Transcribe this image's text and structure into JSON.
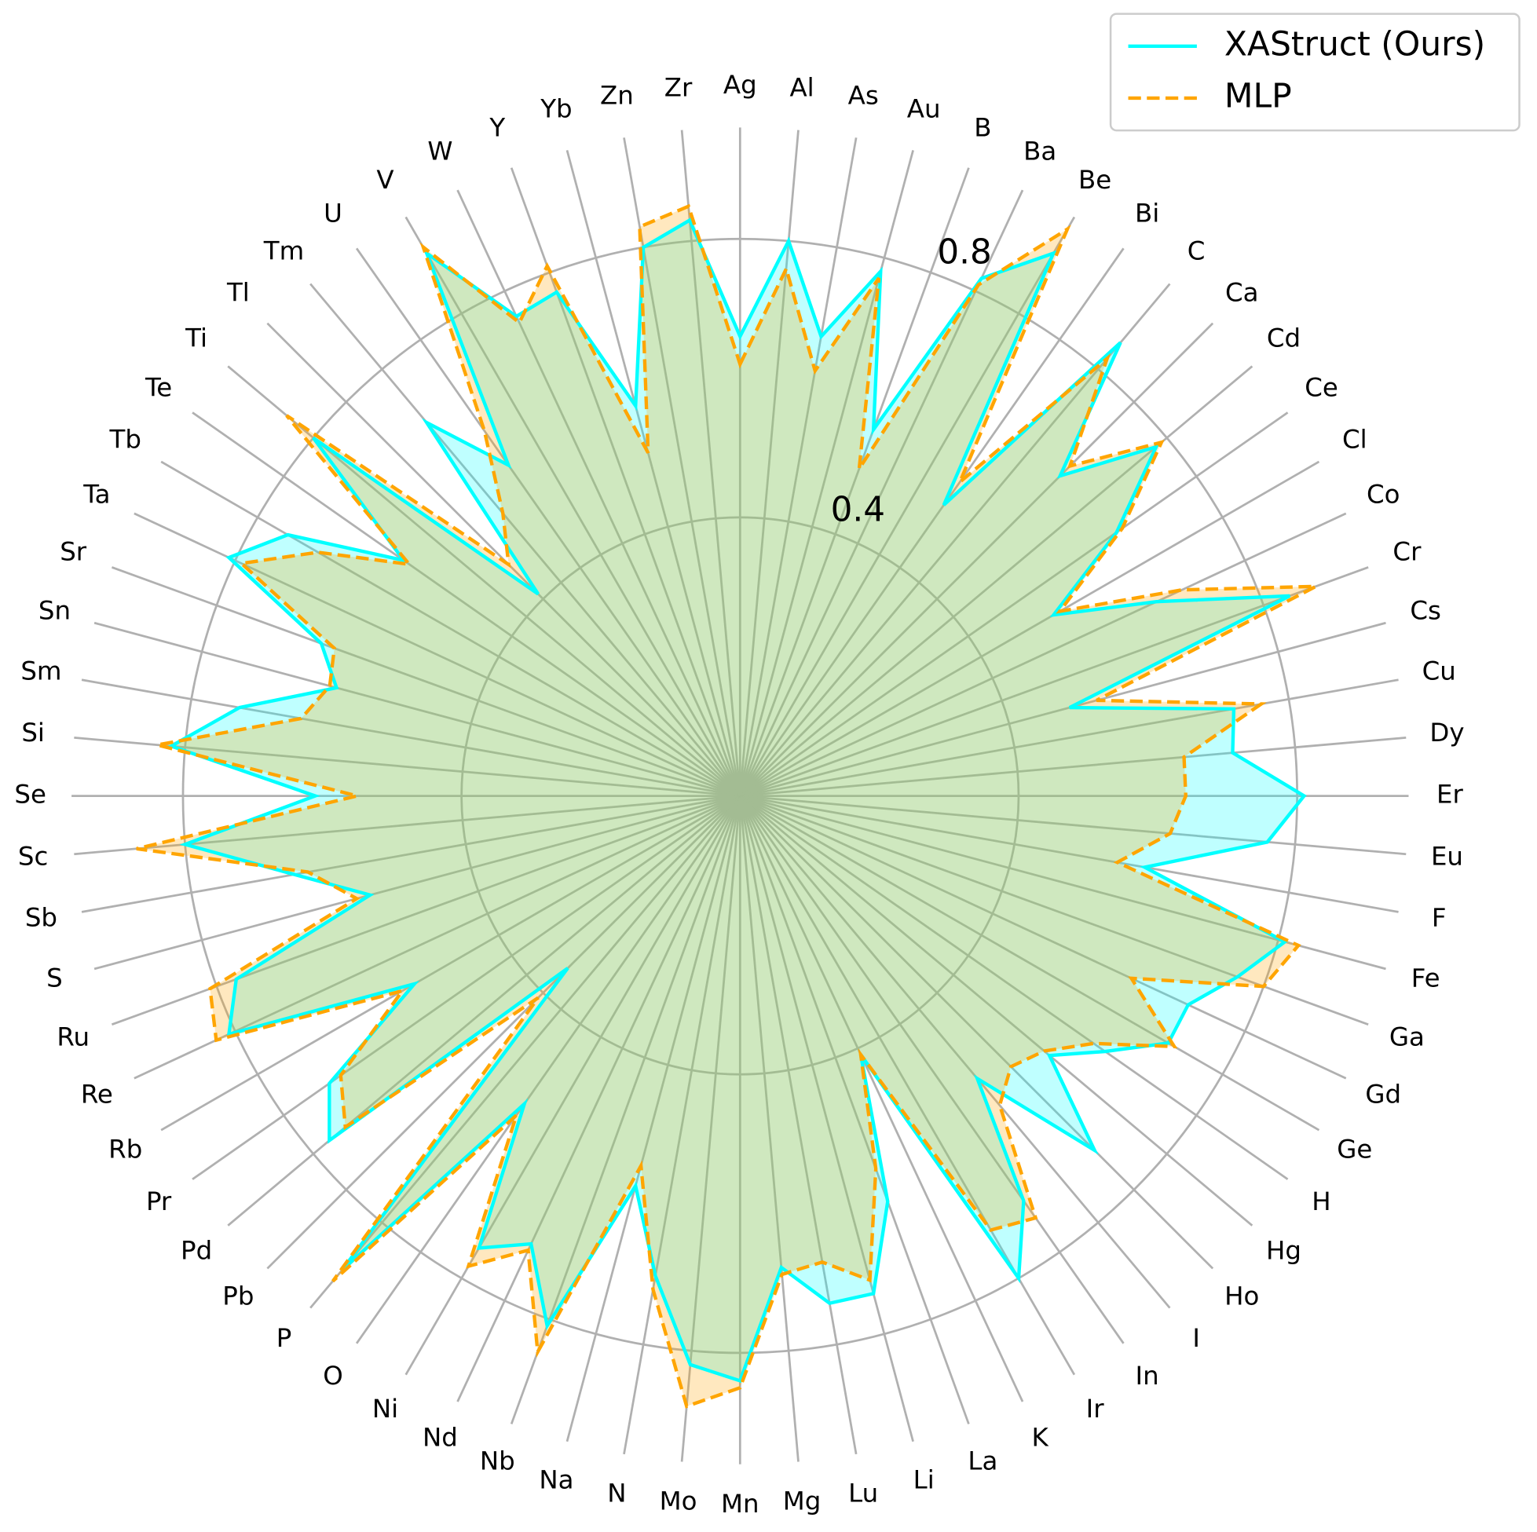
{
  "chart_data": {
    "type": "radar",
    "categories": [
      "Ag",
      "Al",
      "As",
      "Au",
      "B",
      "Ba",
      "Be",
      "Bi",
      "C",
      "Ca",
      "Cd",
      "Ce",
      "Cl",
      "Co",
      "Cr",
      "Cs",
      "Cu",
      "Dy",
      "Er",
      "Eu",
      "F",
      "Fe",
      "Ga",
      "Gd",
      "Ge",
      "H",
      "Hg",
      "Ho",
      "I",
      "In",
      "Ir",
      "K",
      "La",
      "Li",
      "Lu",
      "Mg",
      "Mn",
      "Mo",
      "N",
      "Na",
      "Nb",
      "Nd",
      "Ni",
      "O",
      "P",
      "Pb",
      "Pd",
      "Pr",
      "Rb",
      "Re",
      "Ru",
      "S",
      "Sb",
      "Sc",
      "Se",
      "Si",
      "Sm",
      "Sn",
      "Sr",
      "Ta",
      "Tb",
      "Te",
      "Ti",
      "Tl",
      "Tm",
      "U",
      "V",
      "W",
      "Y",
      "Yb",
      "Zn",
      "Zr"
    ],
    "series": [
      {
        "name": "XAStruct (Ours)",
        "color": "#00ffff",
        "linestyle": "solid",
        "values": [
          0.66,
          0.8,
          0.67,
          0.78,
          0.56,
          0.82,
          0.9,
          0.51,
          0.85,
          0.65,
          0.78,
          0.66,
          0.52,
          0.66,
          0.84,
          0.49,
          0.72,
          0.71,
          0.81,
          0.76,
          0.59,
          0.81,
          0.76,
          0.71,
          0.71,
          0.64,
          0.58,
          0.72,
          0.53,
          0.71,
          0.8,
          0.41,
          0.62,
          0.74,
          0.74,
          0.68,
          0.84,
          0.82,
          0.7,
          0.58,
          0.81,
          0.71,
          0.75,
          0.54,
          0.89,
          0.35,
          0.77,
          0.72,
          0.54,
          0.81,
          0.77,
          0.55,
          0.65,
          0.8,
          0.61,
          0.82,
          0.73,
          0.6,
          0.64,
          0.81,
          0.75,
          0.59,
          0.8,
          0.41,
          0.7,
          0.58,
          0.9,
          0.76,
          0.77,
          0.58,
          0.8,
          0.83
        ]
      },
      {
        "name": "MLP",
        "color": "#ffa500",
        "linestyle": "dashed",
        "values": [
          0.62,
          0.76,
          0.62,
          0.77,
          0.5,
          0.81,
          0.94,
          0.55,
          0.82,
          0.67,
          0.79,
          0.67,
          0.53,
          0.7,
          0.88,
          0.53,
          0.76,
          0.64,
          0.64,
          0.62,
          0.55,
          0.83,
          0.8,
          0.62,
          0.72,
          0.62,
          0.57,
          0.55,
          0.58,
          0.74,
          0.72,
          0.41,
          0.57,
          0.72,
          0.68,
          0.69,
          0.85,
          0.88,
          0.72,
          0.55,
          0.85,
          0.72,
          0.78,
          0.56,
          0.91,
          0.41,
          0.74,
          0.7,
          0.56,
          0.83,
          0.81,
          0.57,
          0.63,
          0.87,
          0.55,
          0.84,
          0.64,
          0.61,
          0.62,
          0.79,
          0.7,
          0.58,
          0.85,
          0.47,
          0.53,
          0.64,
          0.91,
          0.75,
          0.81,
          0.51,
          0.83,
          0.85
        ]
      }
    ],
    "rlim": [
      0,
      0.96
    ],
    "rticks": [
      0.4,
      0.8
    ],
    "grid": true,
    "legend": "upper right"
  }
}
